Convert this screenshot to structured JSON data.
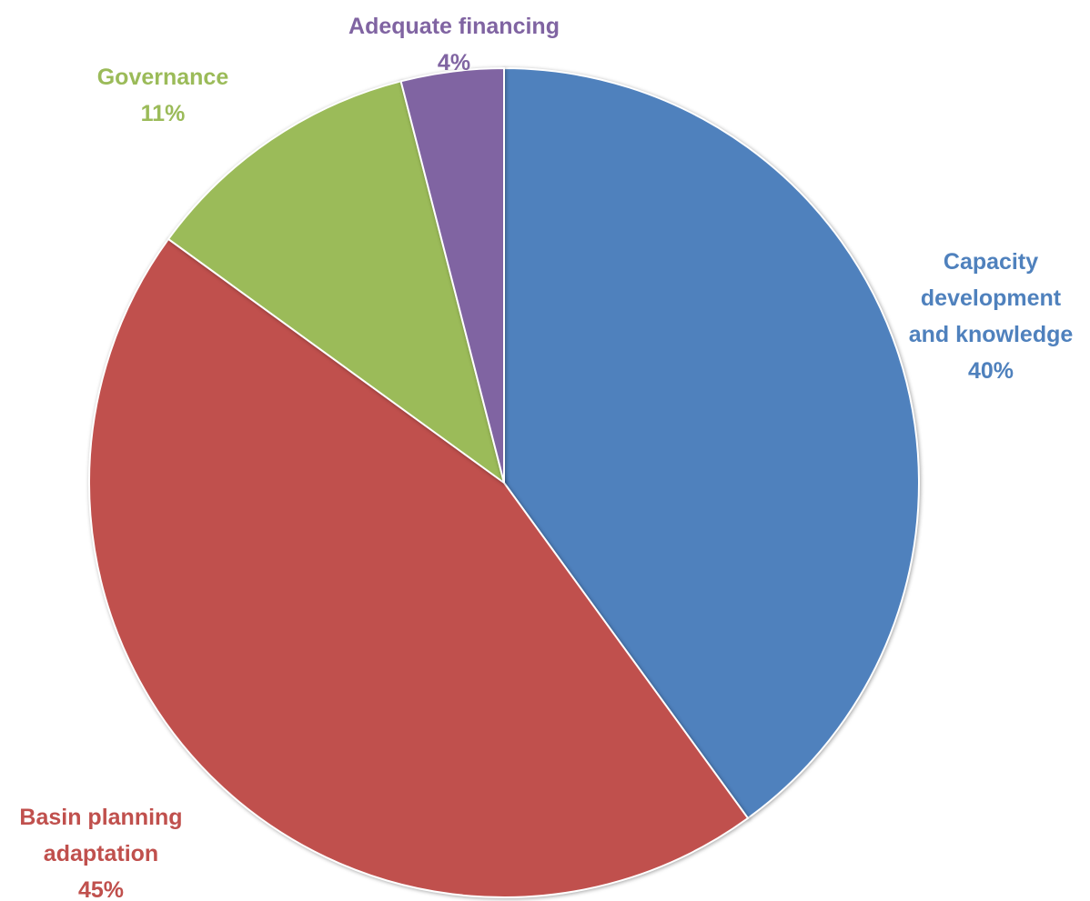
{
  "chart_data": {
    "type": "pie",
    "title": "",
    "start_angle_deg": 0,
    "direction": "clockwise",
    "slices": [
      {
        "name": "Capacity development and knowledge",
        "label_lines": [
          "Capacity",
          "development",
          "and knowledge"
        ],
        "value": 40,
        "percent_label": "40%",
        "color": "#4F81BD"
      },
      {
        "name": "Basin planning adaptation",
        "label_lines": [
          "Basin planning",
          "adaptation"
        ],
        "value": 45,
        "percent_label": "45%",
        "color": "#C0504D"
      },
      {
        "name": "Governance",
        "label_lines": [
          "Governance"
        ],
        "value": 11,
        "percent_label": "11%",
        "color": "#9BBB59"
      },
      {
        "name": "Adequate financing",
        "label_lines": [
          "Adequate financing"
        ],
        "value": 4,
        "percent_label": "4%",
        "color": "#8064A2"
      }
    ]
  }
}
